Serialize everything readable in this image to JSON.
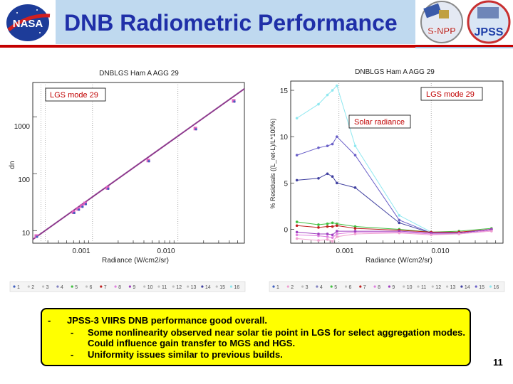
{
  "header": {
    "title": "DNB Radiometric Performance",
    "logos": [
      {
        "name": "NASA",
        "text": "NASA"
      },
      {
        "name": "S-NPP",
        "text": "S-NPP"
      },
      {
        "name": "JPSS",
        "text": "JPSS"
      }
    ],
    "colors": {
      "title": "#1f2fa8",
      "band": "#bfd9ef",
      "rule": "#c40000"
    }
  },
  "plots": [
    {
      "title": "DNBLGS Ham A AGG 29",
      "annotation": "LGS mode 29",
      "xlabel": "Radiance (W/cm2/sr)",
      "ylabel": "dn",
      "x_ticks": [
        "0.001",
        "0.010"
      ],
      "y_ticks": [
        "1000",
        "100",
        "10"
      ]
    },
    {
      "title": "DNBLGS Ham A AGG 29",
      "annotation": "LGS mode 29",
      "annotation2": "Solar radiance",
      "xlabel": "Radiance (W/cm2/sr)",
      "ylabel": "% Residuals ((L_ret-L)/L*100%)",
      "x_ticks": [
        "0.001",
        "0.010"
      ],
      "y_ticks": [
        "15",
        "10",
        "5",
        "0"
      ]
    }
  ],
  "chart_data": [
    {
      "type": "scatter",
      "title": "DNBLGS Ham A AGG 29",
      "xlabel": "Radiance (W/cm2/sr)",
      "ylabel": "dn",
      "xscale": "log",
      "yscale": "log",
      "xlim": [
        0.0002,
        0.06
      ],
      "ylim": [
        6,
        4000
      ],
      "series": [
        {
          "name": "fit",
          "x": [
            0.0002,
            0.06
          ],
          "y": [
            7,
            3100
          ]
        },
        {
          "name": "data",
          "x": [
            0.00022,
            0.0006,
            0.00068,
            0.00075,
            0.00082,
            0.0015,
            0.0045,
            0.016,
            0.045
          ],
          "y": [
            8,
            21,
            24,
            27,
            30,
            56,
            170,
            620,
            1900
          ]
        }
      ],
      "legend": [
        "1",
        "2",
        "3",
        "4",
        "5",
        "6",
        "7",
        "8",
        "9",
        "10",
        "11",
        "12",
        "13",
        "14",
        "15",
        "16"
      ]
    },
    {
      "type": "line",
      "title": "DNBLGS Ham A AGG 29",
      "xlabel": "Radiance (W/cm2/sr)",
      "ylabel": "% Residuals ((L_ret-L)/L*100%)",
      "xscale": "log",
      "xlim": [
        0.0003,
        0.06
      ],
      "ylim": [
        -1.5,
        16
      ],
      "x": [
        0.00035,
        0.0006,
        0.00075,
        0.00085,
        0.00095,
        0.0015,
        0.0045,
        0.01,
        0.02,
        0.045
      ],
      "series": [
        {
          "name": "15",
          "color": "#8fe8f0",
          "values": [
            12,
            13.5,
            14.5,
            15,
            15.5,
            9,
            1.5,
            -0.3,
            -0.4,
            0
          ]
        },
        {
          "name": "14",
          "color": "#6a60c8",
          "values": [
            8,
            8.8,
            9,
            9.2,
            10,
            8,
            1,
            -0.4,
            -0.4,
            0
          ]
        },
        {
          "name": "13",
          "color": "#4040a0",
          "values": [
            5.3,
            5.5,
            6,
            5.7,
            5,
            4.5,
            0.7,
            -0.4,
            -0.4,
            0
          ]
        },
        {
          "name": "5",
          "color": "#40c040",
          "values": [
            0.8,
            0.5,
            0.6,
            0.7,
            0.6,
            0.3,
            0,
            -0.3,
            -0.2,
            0.1
          ]
        },
        {
          "name": "7",
          "color": "#c02020",
          "values": [
            0.4,
            0.2,
            0.3,
            0.3,
            0.4,
            0.1,
            -0.1,
            -0.3,
            -0.3,
            0
          ]
        },
        {
          "name": "8",
          "color": "#e080e0",
          "values": [
            -0.6,
            -0.7,
            -0.8,
            -0.9,
            -0.5,
            -0.3,
            -0.3,
            -0.5,
            -0.5,
            -0.1
          ]
        },
        {
          "name": "9",
          "color": "#a040c0",
          "values": [
            -0.3,
            -0.5,
            -0.5,
            -0.6,
            -0.2,
            -0.2,
            -0.2,
            -0.4,
            -0.4,
            0
          ]
        },
        {
          "name": "2",
          "color": "#f0a0d0",
          "values": [
            -1,
            -1.2,
            -1.1,
            -1.3,
            -0.8,
            -0.5,
            -0.4,
            -0.6,
            -0.5,
            -0.2
          ]
        }
      ],
      "legend": [
        "1",
        "2",
        "3",
        "4",
        "5",
        "6",
        "7",
        "8",
        "9",
        "10",
        "11",
        "12",
        "13",
        "14",
        "15",
        "16"
      ]
    }
  ],
  "summary": {
    "main_dash": "-",
    "main": "JPSS-3 VIIRS DNB performance good overall.",
    "items": [
      {
        "dash": "-",
        "text": "Some nonlinearity observed near solar tie point in LGS for select aggregation modes. Could influence gain transfer to MGS and HGS."
      },
      {
        "dash": "-",
        "text": "Uniformity issues similar to previous builds."
      }
    ]
  },
  "page_number": "11"
}
